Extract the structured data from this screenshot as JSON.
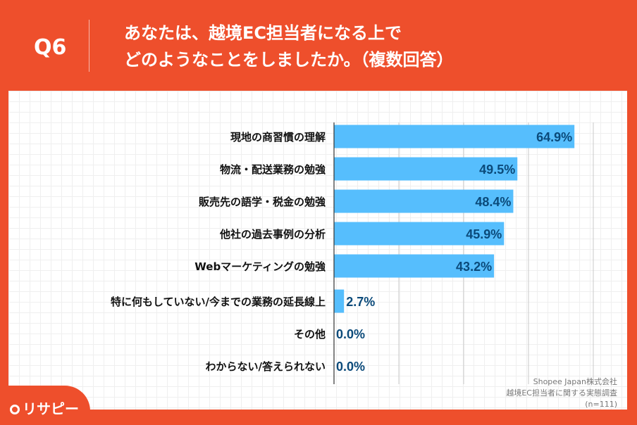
{
  "header": {
    "question": "Q6",
    "title_line1": "あなたは、越境EC担当者になる上で",
    "title_line2": "どのようなことをしましたか。（複数回答）"
  },
  "source": {
    "line1": "Shopee Japan株式会社",
    "line2": "越境EC担当者に関する実態調査",
    "line3": "(n=111)"
  },
  "logo": {
    "text": "リサピー"
  },
  "colors": {
    "background": "#EE4F2C",
    "bar": "#56BEFD",
    "value_label": "#0B4A7A"
  },
  "chart_data": {
    "type": "bar",
    "orientation": "horizontal",
    "categories": [
      "現地の商習慣の理解",
      "物流・配送業務の勉強",
      "販売先の語学・税金の勉強",
      "他社の過去事例の分析",
      "Webマーケティングの勉強",
      "特に何もしていない/今までの業務の延長線上",
      "その他",
      "わからない/答えられない"
    ],
    "values": [
      64.9,
      49.5,
      48.4,
      45.9,
      43.2,
      2.7,
      0.0,
      0.0
    ],
    "value_labels": [
      "64.9%",
      "49.5%",
      "48.4%",
      "45.9%",
      "43.2%",
      "2.7%",
      "0.0%",
      "0.0%"
    ],
    "xlim": [
      0,
      87.5
    ],
    "gridlines": [
      17.5,
      35,
      52.5,
      70
    ],
    "grid": true
  }
}
